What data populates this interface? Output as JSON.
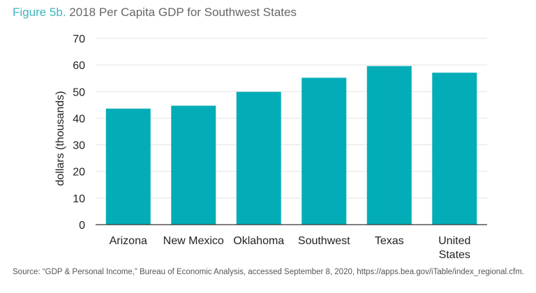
{
  "title": {
    "figure_label": "Figure 5b.",
    "text": "2018 Per Capita GDP for Southwest States"
  },
  "source": "Source: “GDP & Personal Income,” Bureau of Economic Analysis, accessed September 8, 2020, https://apps.bea.gov/iTable/index_regional.cfm.",
  "chart_data": {
    "type": "bar",
    "title": "2018 Per Capita GDP for Southwest States",
    "categories": [
      "Arizona",
      "New Mexico",
      "Oklahoma",
      "Southwest",
      "Texas",
      "United States"
    ],
    "values": [
      43.6,
      44.7,
      49.9,
      55.2,
      59.6,
      57.1
    ],
    "xlabel": "",
    "ylabel": "dollars (thousands)",
    "ylim": [
      0,
      70
    ],
    "yticks": [
      0,
      10,
      20,
      30,
      40,
      50,
      60,
      70
    ],
    "grid": true,
    "bar_color": "#03adb7",
    "legend": "none"
  }
}
